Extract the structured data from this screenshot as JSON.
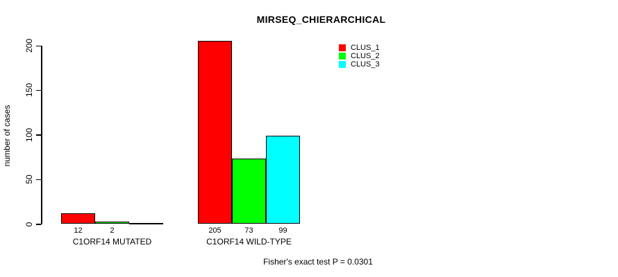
{
  "chart_data": {
    "type": "bar",
    "title": "MIRSEQ_CHIERARCHICAL",
    "ylabel": "number of cases",
    "xlabel": "",
    "categories": [
      "C1ORF14 MUTATED",
      "C1ORF14 WILD-TYPE"
    ],
    "series": [
      {
        "name": "CLUS_1",
        "color": "#ff0000",
        "values": [
          12,
          205
        ],
        "labels": [
          "12",
          "205"
        ]
      },
      {
        "name": "CLUS_2",
        "color": "#00ff00",
        "values": [
          2,
          73
        ],
        "labels": [
          "2",
          "73"
        ]
      },
      {
        "name": "CLUS_3",
        "color": "#00ffff",
        "values": [
          0,
          99
        ],
        "labels": [
          "",
          "99"
        ]
      }
    ],
    "y_ticks": [
      0,
      50,
      100,
      150,
      200
    ],
    "ylim": [
      0,
      205
    ],
    "grid": false,
    "legend_position": "top-right"
  },
  "footnote": "Fisher's exact test P = 0.0301"
}
